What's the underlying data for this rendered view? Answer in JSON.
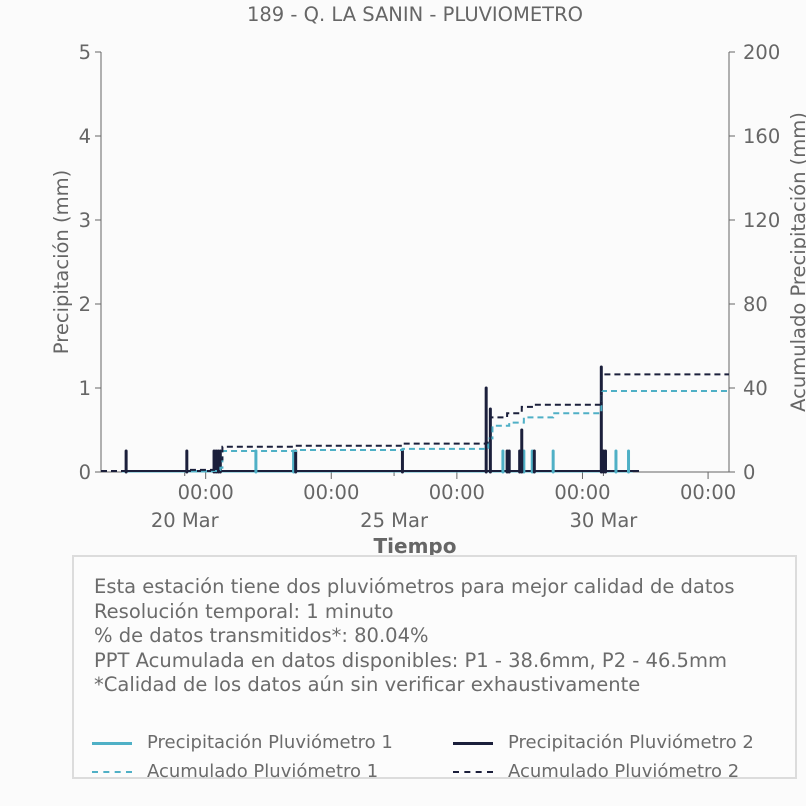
{
  "colors": {
    "p1": "#4fb0c6",
    "p2": "#1b1f3b",
    "axis": "#666666"
  },
  "chart_data": {
    "type": "line",
    "title": "189 - Q. LA SANIN - PLUVIOMETRO",
    "xlabel": "Tiempo",
    "ylabel": "Precipitación (mm)",
    "y2label": "Acumulado Precipitación (mm)",
    "ylim": [
      0,
      5
    ],
    "y2lim": [
      0,
      200
    ],
    "xlim": [
      17.5,
      32.5
    ],
    "yticks": [
      "0",
      "1",
      "2",
      "3",
      "4",
      "5"
    ],
    "y2ticks": [
      "0",
      "40",
      "80",
      "120",
      "160",
      "200"
    ],
    "x_major_ticks": [
      {
        "x": 20,
        "label": "00:00"
      },
      {
        "x": 23,
        "label": "00:00"
      },
      {
        "x": 26,
        "label": "00:00"
      },
      {
        "x": 29,
        "label": "00:00"
      },
      {
        "x": 32,
        "label": "00:00"
      }
    ],
    "x_minor_ticks": [
      {
        "x": 19.5,
        "label": "20 Mar"
      },
      {
        "x": 24.5,
        "label": "25 Mar"
      },
      {
        "x": 29.5,
        "label": "30 Mar"
      }
    ],
    "grid": false,
    "series": [
      {
        "name": "Precipitación Pluviómetro 1",
        "type": "bar",
        "points": [
          [
            21.2,
            0.25
          ],
          [
            22.1,
            0.25
          ],
          [
            27.1,
            0.25
          ],
          [
            27.6,
            0.25
          ],
          [
            27.8,
            0.25
          ],
          [
            28.3,
            0.25
          ],
          [
            29.8,
            0.25
          ],
          [
            30.1,
            0.25
          ]
        ]
      },
      {
        "name": "Precipitación Pluviómetro 2",
        "type": "bar",
        "points": [
          [
            18.1,
            0.25
          ],
          [
            19.55,
            0.25
          ],
          [
            20.2,
            0.25
          ],
          [
            20.25,
            0.25
          ],
          [
            20.3,
            0.25
          ],
          [
            20.35,
            0.25
          ],
          [
            22.15,
            0.25
          ],
          [
            24.7,
            0.25
          ],
          [
            26.7,
            1.0
          ],
          [
            26.8,
            0.75
          ],
          [
            27.2,
            0.25
          ],
          [
            27.25,
            0.25
          ],
          [
            27.5,
            0.25
          ],
          [
            27.55,
            0.5
          ],
          [
            27.85,
            0.25
          ],
          [
            29.45,
            1.25
          ],
          [
            29.5,
            0.25
          ],
          [
            29.55,
            0.25
          ]
        ]
      },
      {
        "name": "Acumulado Pluviómetro 1",
        "type": "step",
        "points": [
          [
            17.5,
            0.5
          ],
          [
            20.3,
            1
          ],
          [
            20.35,
            2
          ],
          [
            20.4,
            10
          ],
          [
            22.2,
            10.5
          ],
          [
            24.7,
            11
          ],
          [
            26.7,
            11.5
          ],
          [
            26.75,
            16
          ],
          [
            26.85,
            22
          ],
          [
            27.25,
            23.5
          ],
          [
            27.6,
            26
          ],
          [
            28.3,
            28
          ],
          [
            29.45,
            38.6
          ],
          [
            32.5,
            38.6
          ]
        ]
      },
      {
        "name": "Acumulado Pluviómetro 2",
        "type": "step",
        "points": [
          [
            17.5,
            0.5
          ],
          [
            19.55,
            1
          ],
          [
            20.2,
            2
          ],
          [
            20.3,
            6
          ],
          [
            20.4,
            12
          ],
          [
            22.15,
            12.5
          ],
          [
            24.7,
            13.5
          ],
          [
            26.7,
            14
          ],
          [
            26.8,
            26
          ],
          [
            27.2,
            28
          ],
          [
            27.55,
            31
          ],
          [
            27.85,
            32
          ],
          [
            29.45,
            46.5
          ],
          [
            32.5,
            46.5
          ]
        ]
      }
    ]
  },
  "info": {
    "lines": [
      "Esta estación tiene dos pluviómetros para mejor calidad de datos",
      "Resolución temporal: 1 minuto",
      "% de datos transmitidos*: 80.04%",
      "PPT Acumulada en datos disponibles: P1 - 38.6mm, P2 - 46.5mm",
      "*Calidad de los datos aún sin verificar exhaustivamente"
    ]
  },
  "legend": [
    {
      "label": "Precipitación Pluviómetro 1",
      "series": "p1",
      "style": "solid"
    },
    {
      "label": "Precipitación Pluviómetro 2",
      "series": "p2",
      "style": "solid"
    },
    {
      "label": "Acumulado Pluviómetro 1",
      "series": "p1",
      "style": "dashed"
    },
    {
      "label": "Acumulado Pluviómetro 2",
      "series": "p2",
      "style": "dashed"
    }
  ]
}
